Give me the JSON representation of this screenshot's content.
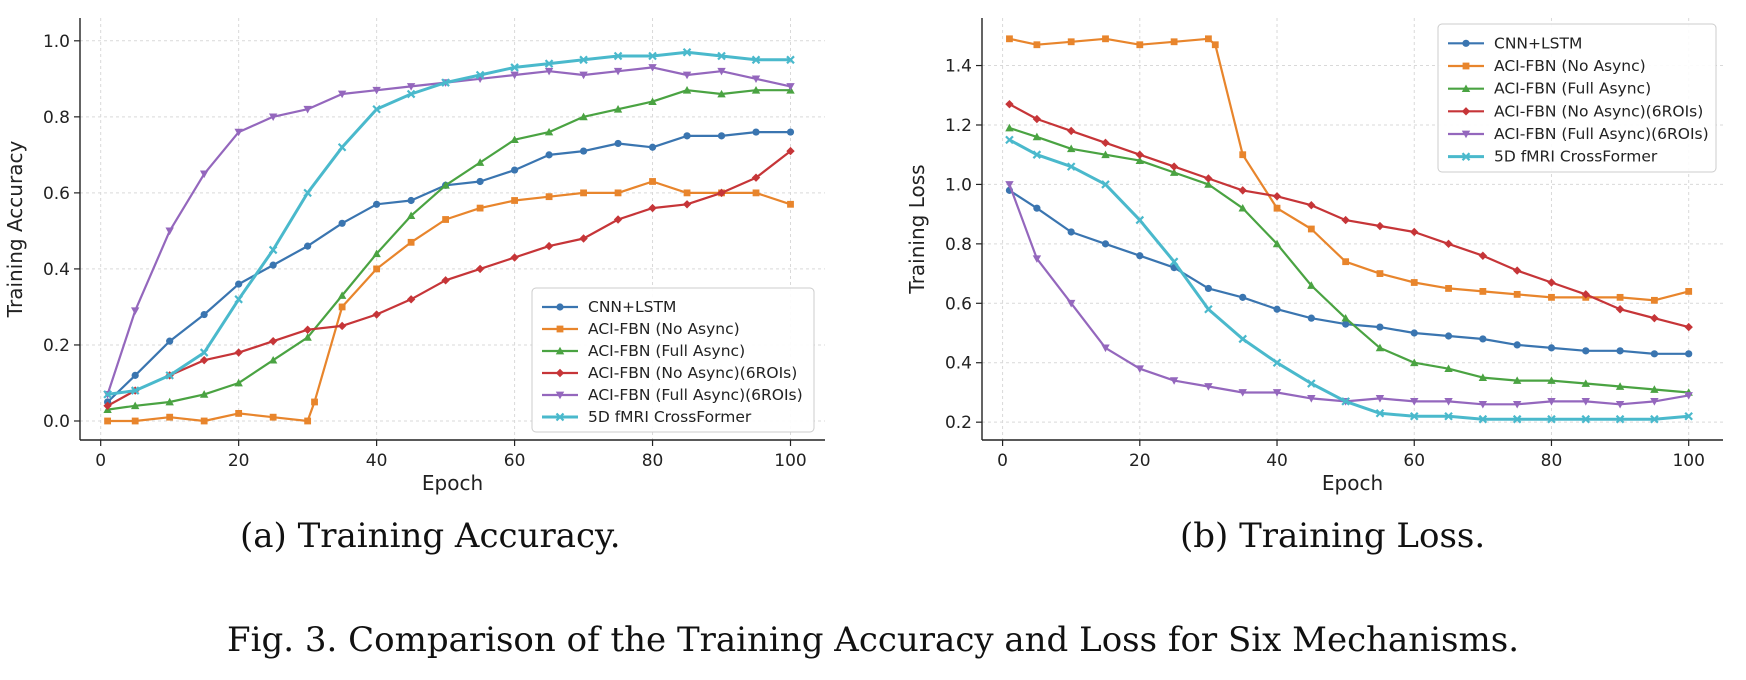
{
  "caption": "Fig. 3.  Comparison of the Training Accuracy and Loss for Six Mechanisms.",
  "chart_data": [
    {
      "type": "line",
      "title": "",
      "caption": "(a) Training Accuracy.",
      "xlabel": "Epoch",
      "ylabel": "Training Accuracy",
      "xlim": [
        -3,
        105
      ],
      "ylim": [
        -0.05,
        1.06
      ],
      "xticks": [
        0,
        20,
        40,
        60,
        80,
        100
      ],
      "yticks": [
        0.0,
        0.2,
        0.4,
        0.6,
        0.8,
        1.0
      ],
      "ytick_labels": [
        "0.0",
        "0.2",
        "0.4",
        "0.6",
        "0.8",
        "1.0"
      ],
      "grid": true,
      "legend_position": "lower-right",
      "x_sample_every": 5,
      "series": [
        {
          "name": "CNN+LSTM",
          "color": "#3a75b0",
          "marker": "circle",
          "x": [
            1,
            5,
            10,
            15,
            20,
            25,
            30,
            35,
            40,
            45,
            50,
            55,
            60,
            65,
            70,
            75,
            80,
            85,
            90,
            95,
            100
          ],
          "y": [
            0.05,
            0.12,
            0.21,
            0.28,
            0.36,
            0.41,
            0.46,
            0.52,
            0.57,
            0.58,
            0.62,
            0.63,
            0.66,
            0.7,
            0.71,
            0.73,
            0.72,
            0.75,
            0.75,
            0.76,
            0.76
          ]
        },
        {
          "name": "ACI-FBN (No Async)",
          "color": "#e8852c",
          "marker": "square",
          "x": [
            1,
            5,
            10,
            15,
            20,
            25,
            30,
            31,
            35,
            40,
            45,
            50,
            55,
            60,
            65,
            70,
            75,
            80,
            85,
            90,
            95,
            100
          ],
          "y": [
            0.0,
            0.0,
            0.01,
            0.0,
            0.02,
            0.01,
            0.0,
            0.05,
            0.3,
            0.4,
            0.47,
            0.53,
            0.56,
            0.58,
            0.59,
            0.6,
            0.6,
            0.63,
            0.6,
            0.6,
            0.6,
            0.57
          ]
        },
        {
          "name": "ACI-FBN (Full Async)",
          "color": "#4aa342",
          "marker": "triangle-up",
          "x": [
            1,
            5,
            10,
            15,
            20,
            25,
            30,
            35,
            40,
            45,
            50,
            55,
            60,
            65,
            70,
            75,
            80,
            85,
            90,
            95,
            100
          ],
          "y": [
            0.03,
            0.04,
            0.05,
            0.07,
            0.1,
            0.16,
            0.22,
            0.33,
            0.44,
            0.54,
            0.62,
            0.68,
            0.74,
            0.76,
            0.8,
            0.82,
            0.84,
            0.87,
            0.86,
            0.87,
            0.87
          ]
        },
        {
          "name": "ACI-FBN (No Async)(6ROIs)",
          "color": "#c63538",
          "marker": "diamond",
          "x": [
            1,
            5,
            10,
            15,
            20,
            25,
            30,
            35,
            40,
            45,
            50,
            55,
            60,
            65,
            70,
            75,
            80,
            85,
            90,
            95,
            100
          ],
          "y": [
            0.04,
            0.08,
            0.12,
            0.16,
            0.18,
            0.21,
            0.24,
            0.25,
            0.28,
            0.32,
            0.37,
            0.4,
            0.43,
            0.46,
            0.48,
            0.53,
            0.56,
            0.57,
            0.6,
            0.64,
            0.71
          ]
        },
        {
          "name": "ACI-FBN (Full Async)(6ROIs)",
          "color": "#9467bd",
          "marker": "triangle-down",
          "x": [
            1,
            5,
            10,
            15,
            20,
            25,
            30,
            35,
            40,
            45,
            50,
            55,
            60,
            65,
            70,
            75,
            80,
            85,
            90,
            95,
            100
          ],
          "y": [
            0.07,
            0.29,
            0.5,
            0.65,
            0.76,
            0.8,
            0.82,
            0.86,
            0.87,
            0.88,
            0.89,
            0.9,
            0.91,
            0.92,
            0.91,
            0.92,
            0.93,
            0.91,
            0.92,
            0.9,
            0.88
          ]
        },
        {
          "name": "5D fMRI CrossFormer",
          "color": "#4ab9cc",
          "marker": "x",
          "x": [
            1,
            5,
            10,
            15,
            20,
            25,
            30,
            35,
            40,
            45,
            50,
            55,
            60,
            65,
            70,
            75,
            80,
            85,
            90,
            95,
            100
          ],
          "y": [
            0.07,
            0.08,
            0.12,
            0.18,
            0.32,
            0.45,
            0.6,
            0.72,
            0.82,
            0.86,
            0.89,
            0.91,
            0.93,
            0.94,
            0.95,
            0.96,
            0.96,
            0.97,
            0.96,
            0.95,
            0.95
          ]
        }
      ]
    },
    {
      "type": "line",
      "title": "",
      "caption": "(b) Training Loss.",
      "xlabel": "Epoch",
      "ylabel": "Training Loss",
      "xlim": [
        -3,
        105
      ],
      "ylim": [
        0.14,
        1.56
      ],
      "xticks": [
        0,
        20,
        40,
        60,
        80,
        100
      ],
      "yticks": [
        0.2,
        0.4,
        0.6,
        0.8,
        1.0,
        1.2,
        1.4
      ],
      "ytick_labels": [
        "0.2",
        "0.4",
        "0.6",
        "0.8",
        "1.0",
        "1.2",
        "1.4"
      ],
      "grid": true,
      "legend_position": "top-right",
      "x_sample_every": 5,
      "series": [
        {
          "name": "CNN+LSTM",
          "color": "#3a75b0",
          "marker": "circle",
          "x": [
            1,
            5,
            10,
            15,
            20,
            25,
            30,
            35,
            40,
            45,
            50,
            55,
            60,
            65,
            70,
            75,
            80,
            85,
            90,
            95,
            100
          ],
          "y": [
            0.98,
            0.92,
            0.84,
            0.8,
            0.76,
            0.72,
            0.65,
            0.62,
            0.58,
            0.55,
            0.53,
            0.52,
            0.5,
            0.49,
            0.48,
            0.46,
            0.45,
            0.44,
            0.44,
            0.43,
            0.43
          ]
        },
        {
          "name": "ACI-FBN (No Async)",
          "color": "#e8852c",
          "marker": "square",
          "x": [
            1,
            5,
            10,
            15,
            20,
            25,
            30,
            31,
            35,
            40,
            45,
            50,
            55,
            60,
            65,
            70,
            75,
            80,
            85,
            90,
            95,
            100
          ],
          "y": [
            1.49,
            1.47,
            1.48,
            1.49,
            1.47,
            1.48,
            1.49,
            1.47,
            1.1,
            0.92,
            0.85,
            0.74,
            0.7,
            0.67,
            0.65,
            0.64,
            0.63,
            0.62,
            0.62,
            0.62,
            0.61,
            0.64
          ]
        },
        {
          "name": "ACI-FBN (Full Async)",
          "color": "#4aa342",
          "marker": "triangle-up",
          "x": [
            1,
            5,
            10,
            15,
            20,
            25,
            30,
            35,
            40,
            45,
            50,
            55,
            60,
            65,
            70,
            75,
            80,
            85,
            90,
            95,
            100
          ],
          "y": [
            1.19,
            1.16,
            1.12,
            1.1,
            1.08,
            1.04,
            1.0,
            0.92,
            0.8,
            0.66,
            0.55,
            0.45,
            0.4,
            0.38,
            0.35,
            0.34,
            0.34,
            0.33,
            0.32,
            0.31,
            0.3
          ]
        },
        {
          "name": "ACI-FBN (No Async)(6ROIs)",
          "color": "#c63538",
          "marker": "diamond",
          "x": [
            1,
            5,
            10,
            15,
            20,
            25,
            30,
            35,
            40,
            45,
            50,
            55,
            60,
            65,
            70,
            75,
            80,
            85,
            90,
            95,
            100
          ],
          "y": [
            1.27,
            1.22,
            1.18,
            1.14,
            1.1,
            1.06,
            1.02,
            0.98,
            0.96,
            0.93,
            0.88,
            0.86,
            0.84,
            0.8,
            0.76,
            0.71,
            0.67,
            0.63,
            0.58,
            0.55,
            0.52
          ]
        },
        {
          "name": "ACI-FBN (Full Async)(6ROIs)",
          "color": "#9467bd",
          "marker": "triangle-down",
          "x": [
            1,
            5,
            10,
            15,
            20,
            25,
            30,
            35,
            40,
            45,
            50,
            55,
            60,
            65,
            70,
            75,
            80,
            85,
            90,
            95,
            100
          ],
          "y": [
            1.0,
            0.75,
            0.6,
            0.45,
            0.38,
            0.34,
            0.32,
            0.3,
            0.3,
            0.28,
            0.27,
            0.28,
            0.27,
            0.27,
            0.26,
            0.26,
            0.27,
            0.27,
            0.26,
            0.27,
            0.29
          ]
        },
        {
          "name": "5D fMRI CrossFormer",
          "color": "#4ab9cc",
          "marker": "x",
          "x": [
            1,
            5,
            10,
            15,
            20,
            25,
            30,
            35,
            40,
            45,
            50,
            55,
            60,
            65,
            70,
            75,
            80,
            85,
            90,
            95,
            100
          ],
          "y": [
            1.15,
            1.1,
            1.06,
            1.0,
            0.88,
            0.74,
            0.58,
            0.48,
            0.4,
            0.33,
            0.27,
            0.23,
            0.22,
            0.22,
            0.21,
            0.21,
            0.21,
            0.21,
            0.21,
            0.21,
            0.22
          ]
        }
      ]
    }
  ]
}
